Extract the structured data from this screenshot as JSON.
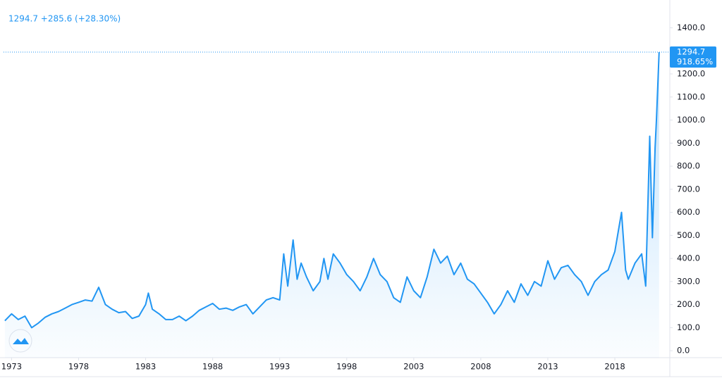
{
  "chart_data": {
    "type": "line",
    "header": "1294.7 +285.6 (+28.30%)",
    "last_price_label": "1294.7",
    "last_change_label": "918.65%",
    "color": "#2196f3",
    "grid": false,
    "x": [
      1972.5,
      1973,
      1973.5,
      1974,
      1974.5,
      1975,
      1975.5,
      1976,
      1976.5,
      1977,
      1977.5,
      1978,
      1978.5,
      1979,
      1979.5,
      1980,
      1980.5,
      1981,
      1981.5,
      1982,
      1982.5,
      1983,
      1983.2,
      1983.5,
      1984,
      1984.5,
      1985,
      1985.5,
      1986,
      1986.5,
      1987,
      1987.5,
      1988,
      1988.5,
      1989,
      1989.5,
      1990,
      1990.5,
      1991,
      1991.5,
      1992,
      1992.5,
      1993,
      1993.3,
      1993.6,
      1994,
      1994.3,
      1994.6,
      1995,
      1995.5,
      1996,
      1996.3,
      1996.6,
      1997,
      1997.5,
      1998,
      1998.5,
      1999,
      1999.5,
      2000,
      2000.5,
      2001,
      2001.5,
      2002,
      2002.5,
      2003,
      2003.5,
      2004,
      2004.5,
      2005,
      2005.5,
      2006,
      2006.5,
      2007,
      2007.5,
      2008,
      2008.5,
      2009,
      2009.5,
      2010,
      2010.5,
      2011,
      2011.5,
      2012,
      2012.5,
      2013,
      2013.5,
      2014,
      2014.5,
      2015,
      2015.5,
      2016,
      2016.5,
      2017,
      2017.5,
      2018,
      2018.5,
      2018.8,
      2019,
      2019.5,
      2020,
      2020.3,
      2020.6,
      2020.8,
      2021,
      2021.1,
      2021.3
    ],
    "values": [
      130,
      160,
      135,
      150,
      100,
      120,
      145,
      160,
      170,
      185,
      200,
      210,
      220,
      215,
      275,
      200,
      180,
      165,
      170,
      140,
      150,
      200,
      250,
      180,
      160,
      135,
      135,
      150,
      130,
      150,
      175,
      190,
      205,
      180,
      185,
      175,
      190,
      200,
      160,
      190,
      220,
      230,
      220,
      420,
      280,
      480,
      310,
      380,
      320,
      260,
      300,
      400,
      310,
      420,
      380,
      330,
      300,
      260,
      320,
      400,
      330,
      300,
      230,
      210,
      320,
      260,
      230,
      320,
      440,
      380,
      410,
      330,
      380,
      310,
      290,
      250,
      210,
      160,
      200,
      260,
      210,
      290,
      240,
      300,
      280,
      390,
      310,
      360,
      370,
      330,
      300,
      240,
      300,
      330,
      350,
      430,
      600,
      350,
      310,
      380,
      420,
      280,
      930,
      490,
      880,
      1000,
      1294.7
    ],
    "xlim": [
      1972.4,
      2022.1
    ],
    "xticks": [
      1973,
      1978,
      1983,
      1988,
      1993,
      1998,
      2003,
      2008,
      2013,
      2018
    ],
    "ylim": [
      -30,
      1490
    ],
    "yticks": [
      {
        "value": 0,
        "label": "0.0"
      },
      {
        "value": 100,
        "label": "100.0"
      },
      {
        "value": 200,
        "label": "200.0"
      },
      {
        "value": 300,
        "label": "300.0"
      },
      {
        "value": 400,
        "label": "400.0"
      },
      {
        "value": 500,
        "label": "500.0"
      },
      {
        "value": 600,
        "label": "600.0"
      },
      {
        "value": 700,
        "label": "700.0"
      },
      {
        "value": 800,
        "label": "800.0"
      },
      {
        "value": 900,
        "label": "900.0"
      },
      {
        "value": 1000,
        "label": "1000.0"
      },
      {
        "value": 1100,
        "label": "1100.0"
      },
      {
        "value": 1200,
        "label": "1200.0"
      },
      {
        "value": 1400,
        "label": "1400.0"
      }
    ]
  }
}
